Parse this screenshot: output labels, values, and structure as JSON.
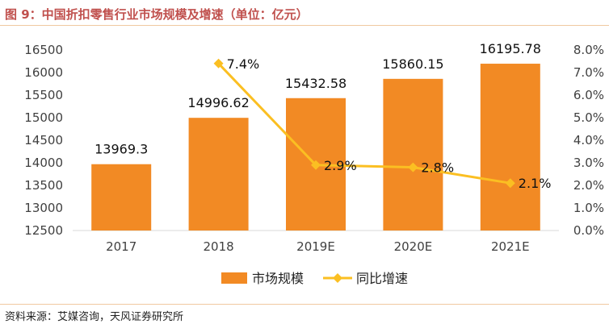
{
  "header": {
    "title": "图 9：中国折扣零售行业市场规模及增速（单位：亿元）"
  },
  "footer": {
    "source": "资料来源：艾媒咨询，天风证券研究所"
  },
  "chart_data": {
    "type": "bar",
    "categories": [
      "2017",
      "2018",
      "2019E",
      "2020E",
      "2021E"
    ],
    "series": [
      {
        "name": "市场规模",
        "type": "bar",
        "axis": "left",
        "color": "#f28a24",
        "values": [
          13969.3,
          14996.62,
          15432.58,
          15860.15,
          16195.78
        ],
        "labels": [
          "13969.3",
          "14996.62",
          "15432.58",
          "15860.15",
          "16195.78"
        ]
      },
      {
        "name": "同比增速",
        "type": "line",
        "axis": "right",
        "color": "#fbbf22",
        "values": [
          null,
          7.4,
          2.9,
          2.8,
          2.1
        ],
        "labels": [
          "",
          "7.4%",
          "2.9%",
          "2.8%",
          "2.1%"
        ]
      }
    ],
    "y_left": {
      "min": 12500,
      "max": 16500,
      "step": 500,
      "tick_labels": [
        "12500",
        "13000",
        "13500",
        "14000",
        "14500",
        "15000",
        "15500",
        "16000",
        "16500"
      ]
    },
    "y_right": {
      "min": 0,
      "max": 8,
      "step": 1,
      "tick_labels": [
        "0.0%",
        "1.0%",
        "2.0%",
        "3.0%",
        "4.0%",
        "5.0%",
        "6.0%",
        "7.0%",
        "8.0%"
      ]
    },
    "grid": false,
    "legend": "bottom"
  }
}
